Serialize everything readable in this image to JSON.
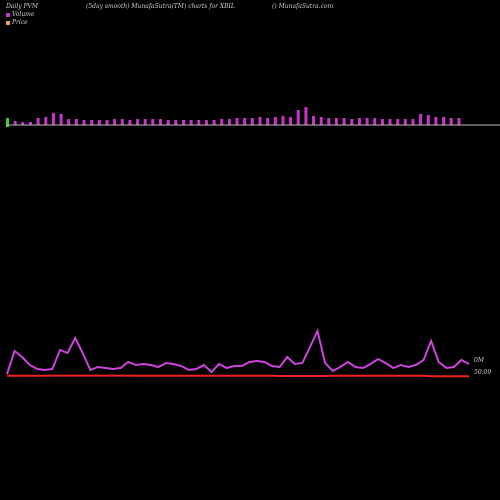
{
  "header": {
    "left": "Daily PVM",
    "middle": "(5day smooth) MunafaSutra(TM) charts for XBIL",
    "right": "() MunafaSutra.com"
  },
  "legend": {
    "volume_label": "Volume",
    "price_label": "Price"
  },
  "colors": {
    "background": "#000000",
    "volume_bar": "#cc33cc",
    "volume_down": "#33cc33",
    "pvm_line": "#cc44dd",
    "price_line": "#ee2222",
    "baseline": "#bbbbbb"
  },
  "chart_data": {
    "type": "bar",
    "series": [
      {
        "name": "Volume",
        "values": [
          7,
          4,
          3,
          3,
          7,
          8,
          12,
          11,
          6,
          6,
          5,
          5,
          5,
          5,
          6,
          6,
          5,
          6,
          6,
          6,
          6,
          5,
          5,
          5,
          5,
          5,
          5,
          5,
          6,
          6,
          7,
          7,
          7,
          8,
          7,
          8,
          9,
          8,
          15,
          18,
          9,
          8,
          7,
          7,
          7,
          6,
          7,
          7,
          7,
          6,
          6,
          6,
          6,
          6,
          11,
          10,
          8,
          8,
          7,
          7
        ]
      },
      {
        "name": "",
        "values": [
          1.0,
          24,
          18,
          10,
          6,
          5,
          6,
          25,
          22,
          37,
          22,
          5,
          8,
          7,
          6,
          7,
          13,
          10,
          11,
          10,
          8,
          12,
          11,
          9,
          5,
          6,
          10,
          3,
          11,
          7,
          9,
          9,
          13,
          14,
          13,
          9,
          8,
          18,
          11,
          12,
          28,
          44,
          12,
          4,
          8,
          13,
          8,
          7,
          11,
          16,
          12,
          7,
          10,
          8,
          10,
          15,
          34,
          13,
          7,
          8,
          15,
          11
        ]
      },
      {
        "name": "",
        "values": [
          1.2,
          1.2,
          1.2,
          1.2,
          1.2,
          1.3,
          1.4,
          1.4,
          1.4,
          1.4,
          1.4,
          1.4,
          1.4,
          1.4,
          1.4,
          1.4,
          1.4,
          1.2,
          1.2,
          1.2,
          1.2,
          1.2,
          1.2,
          1.2,
          1.2,
          1.2,
          1.2,
          1.2,
          1.2,
          1.2,
          1.2,
          1.2,
          1.2,
          1.2,
          1.2,
          1.2,
          1.0,
          1.0,
          1.0,
          1.0,
          1.0,
          1.0,
          1.0,
          1.2,
          1.2,
          1.2,
          1.2,
          1.2,
          1.2,
          1.2,
          1.2,
          1.2,
          1.2,
          1.2,
          1.2,
          1.2,
          0.8,
          0.8,
          0.8,
          0.8,
          0.8,
          0.8
        ]
      }
    ],
    "down_bars": [
      0
    ],
    "right_labels": {
      "pvm": "0M",
      "price": "50.09"
    },
    "grid": false
  }
}
